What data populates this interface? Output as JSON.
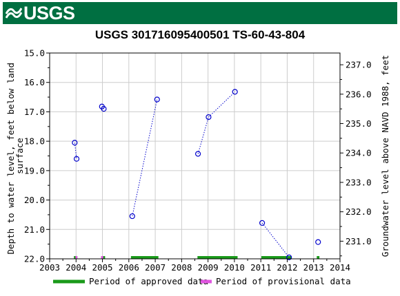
{
  "header": {
    "agency": "USGS"
  },
  "chart_data": {
    "type": "scatter",
    "title": "USGS 301716095400501 TS-60-43-804",
    "ylabel_left": "Depth to water level, feet below land surface",
    "ylabel_right": "Groundwater level above NAVD 1988, feet",
    "x_ticks": [
      "2003",
      "2004",
      "2005",
      "2006",
      "2007",
      "2008",
      "2009",
      "2010",
      "2011",
      "2012",
      "2013",
      "2014"
    ],
    "xlim": [
      2003,
      2014
    ],
    "ylim_left": [
      15.0,
      22.0
    ],
    "left_ticks": [
      "15.0",
      "16.0",
      "17.0",
      "18.0",
      "19.0",
      "20.0",
      "21.0",
      "22.0"
    ],
    "ylim_right": [
      237.4,
      230.4
    ],
    "right_ticks": [
      "237.0",
      "236.0",
      "235.0",
      "234.0",
      "233.0",
      "232.0",
      "231.0"
    ],
    "grid": true,
    "colors": {
      "points": "#0000cc",
      "approved": "#1a9a1a",
      "provisional": "#e055e0",
      "banner": "#006f41"
    },
    "points": [
      {
        "x": 2003.95,
        "y": 18.05
      },
      {
        "x": 2004.02,
        "y": 18.6
      },
      {
        "x": 2004.98,
        "y": 16.82
      },
      {
        "x": 2005.05,
        "y": 16.9
      },
      {
        "x": 2006.13,
        "y": 20.55
      },
      {
        "x": 2007.07,
        "y": 16.58
      },
      {
        "x": 2008.62,
        "y": 18.43
      },
      {
        "x": 2009.02,
        "y": 17.18
      },
      {
        "x": 2010.02,
        "y": 16.32
      },
      {
        "x": 2011.05,
        "y": 20.78
      },
      {
        "x": 2012.07,
        "y": 21.95
      },
      {
        "x": 2013.17,
        "y": 21.43
      }
    ],
    "connections": [
      [
        0,
        1
      ],
      [
        2,
        3
      ],
      [
        4,
        5
      ],
      [
        6,
        7
      ],
      [
        7,
        8
      ],
      [
        9,
        10
      ]
    ],
    "approved_periods": [
      [
        2003.92,
        2004.05
      ],
      [
        2004.95,
        2005.1
      ],
      [
        2006.08,
        2007.12
      ],
      [
        2008.6,
        2010.12
      ],
      [
        2011.02,
        2012.15
      ],
      [
        2013.12,
        2013.22
      ]
    ],
    "provisional_periods": [
      [
        2003.98,
        2004.05
      ],
      [
        2004.95,
        2005.03
      ]
    ],
    "legend": {
      "approved": "Period of approved data",
      "provisional": "Period of provisional data"
    }
  }
}
